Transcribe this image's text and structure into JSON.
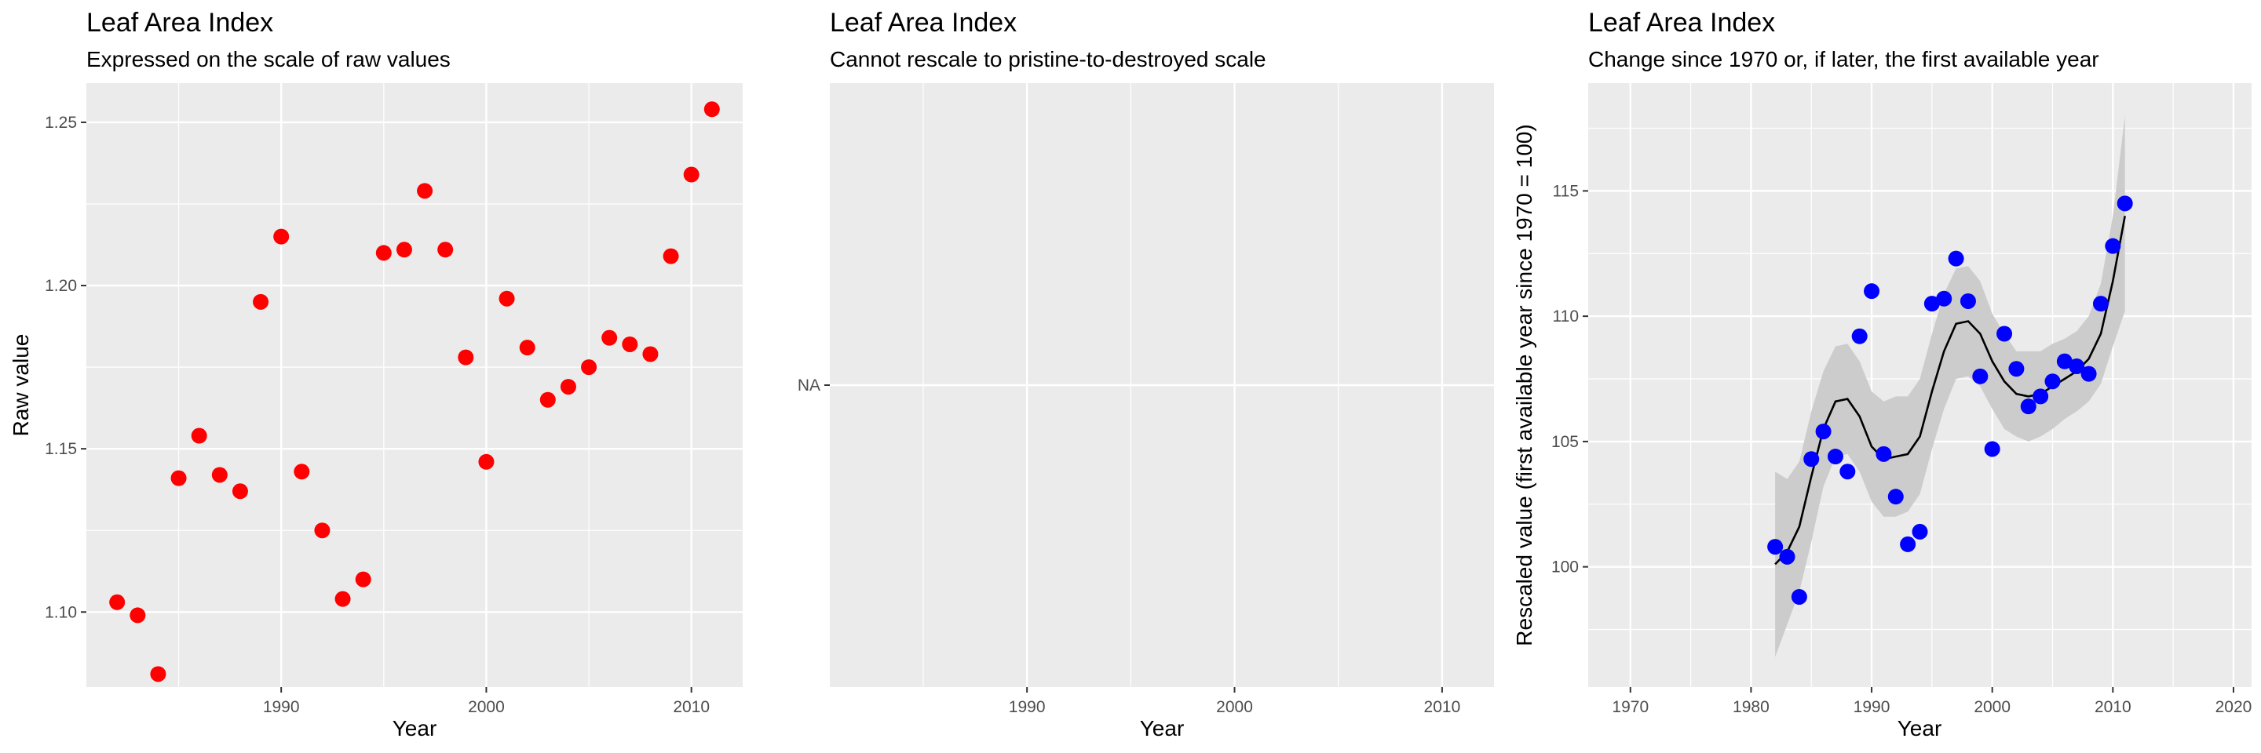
{
  "chart_data": [
    {
      "type": "scatter",
      "title": "Leaf Area Index",
      "subtitle": "Expressed on the scale of raw values",
      "xlabel": "Year",
      "ylabel": "Raw value",
      "xlim": [
        1980.5,
        2012.5
      ],
      "ylim": [
        1.077,
        1.262
      ],
      "xticks": [
        1990,
        2000,
        2010
      ],
      "xtick_labels": [
        "1990",
        "2000",
        "2010"
      ],
      "yticks": [
        1.1,
        1.15,
        1.2,
        1.25
      ],
      "ytick_labels": [
        "1.10",
        "1.15",
        "1.20",
        "1.25"
      ],
      "grid": true,
      "point_color": "#ff0000",
      "series": [
        {
          "x": [
            1982,
            1983,
            1984,
            1985,
            1986,
            1987,
            1988,
            1989,
            1990,
            1991,
            1992,
            1993,
            1994,
            1995,
            1996,
            1997,
            1998,
            1999,
            2000,
            2001,
            2002,
            2003,
            2004,
            2005,
            2006,
            2007,
            2008,
            2009,
            2010,
            2011
          ],
          "y": [
            1.103,
            1.099,
            1.081,
            1.141,
            1.154,
            1.142,
            1.137,
            1.195,
            1.215,
            1.143,
            1.125,
            1.104,
            1.11,
            1.21,
            1.211,
            1.229,
            1.211,
            1.178,
            1.146,
            1.196,
            1.181,
            1.165,
            1.169,
            1.175,
            1.184,
            1.182,
            1.179,
            1.209,
            1.234,
            1.254
          ]
        }
      ]
    },
    {
      "type": "scatter",
      "title": "Leaf Area Index",
      "subtitle": "Cannot rescale to pristine-to-destroyed scale",
      "xlabel": "Year",
      "ylabel": "",
      "xlim": [
        1980.5,
        2012.5
      ],
      "xticks": [
        1990,
        2000,
        2010
      ],
      "xtick_labels": [
        "1990",
        "2000",
        "2010"
      ],
      "ytick_labels": [
        "NA"
      ],
      "grid": true,
      "series": []
    },
    {
      "type": "scatter",
      "title": "Leaf Area Index",
      "subtitle": "Change since 1970 or, if later, the first available year",
      "xlabel": "Year",
      "ylabel": "Rescaled value (first available year since 1970 = 100)",
      "xlim": [
        1966.5,
        2021.5
      ],
      "ylim": [
        95.2,
        119.3
      ],
      "xticks": [
        1970,
        1980,
        1990,
        2000,
        2010,
        2020
      ],
      "xtick_labels": [
        "1970",
        "1980",
        "1990",
        "2000",
        "2010",
        "2020"
      ],
      "yticks": [
        100,
        105,
        110,
        115
      ],
      "ytick_labels": [
        "100",
        "105",
        "110",
        "115"
      ],
      "grid": true,
      "point_color": "#0000ff",
      "smooth_color": "#000000",
      "ribbon_color": "#cccccc",
      "series": [
        {
          "x": [
            1982,
            1983,
            1984,
            1985,
            1986,
            1987,
            1988,
            1989,
            1990,
            1991,
            1992,
            1993,
            1994,
            1995,
            1996,
            1997,
            1998,
            1999,
            2000,
            2001,
            2002,
            2003,
            2004,
            2005,
            2006,
            2007,
            2008,
            2009,
            2010,
            2011
          ],
          "y": [
            100.8,
            100.4,
            98.8,
            104.3,
            105.4,
            104.4,
            103.8,
            109.2,
            111.0,
            104.5,
            102.8,
            100.9,
            101.4,
            110.5,
            110.7,
            112.3,
            110.6,
            107.6,
            104.7,
            109.3,
            107.9,
            106.4,
            106.8,
            107.4,
            108.2,
            108.0,
            107.7,
            110.5,
            112.8,
            114.5
          ]
        }
      ],
      "smooth": {
        "x": [
          1982,
          1983,
          1984,
          1985,
          1986,
          1987,
          1988,
          1989,
          1990,
          1991,
          1992,
          1993,
          1994,
          1995,
          1996,
          1997,
          1998,
          1999,
          2000,
          2001,
          2002,
          2003,
          2004,
          2005,
          2006,
          2007,
          2008,
          2009,
          2010,
          2011
        ],
        "y": [
          100.1,
          100.6,
          101.6,
          103.6,
          105.5,
          106.6,
          106.7,
          106.0,
          104.8,
          104.3,
          104.4,
          104.5,
          105.2,
          107.0,
          108.6,
          109.7,
          109.8,
          109.3,
          108.2,
          107.4,
          106.9,
          106.8,
          106.9,
          107.2,
          107.5,
          107.8,
          108.3,
          109.3,
          111.4,
          114.0
        ],
        "lower": [
          96.4,
          97.7,
          99.0,
          101.0,
          103.2,
          104.4,
          104.5,
          103.8,
          102.6,
          102.0,
          102.0,
          102.2,
          102.9,
          104.7,
          106.3,
          107.5,
          107.6,
          107.2,
          106.3,
          105.5,
          105.2,
          105.0,
          105.2,
          105.5,
          105.9,
          106.2,
          106.6,
          107.3,
          108.8,
          110.2
        ],
        "upper": [
          103.8,
          103.5,
          104.2,
          106.2,
          107.8,
          108.8,
          108.9,
          108.2,
          107.0,
          106.6,
          106.8,
          106.8,
          107.5,
          109.3,
          110.9,
          111.9,
          112.0,
          111.4,
          110.1,
          109.3,
          108.6,
          108.6,
          108.6,
          108.9,
          109.1,
          109.4,
          110.0,
          111.3,
          114.0,
          118.0
        ]
      }
    }
  ]
}
